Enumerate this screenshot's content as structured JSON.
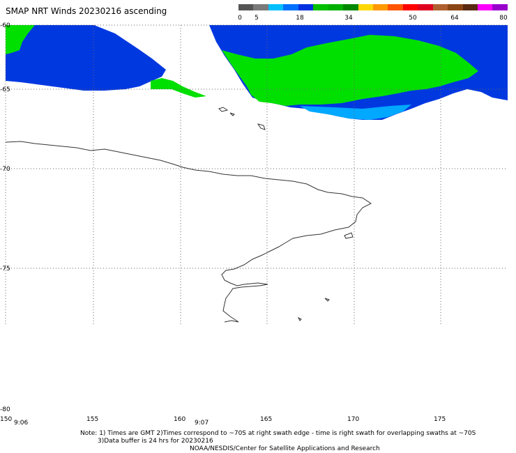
{
  "title": "SMAP NRT Winds 20230216 ascending",
  "legend": {
    "labels": [
      "0",
      "5",
      "18",
      "34",
      "50",
      "64",
      "80"
    ],
    "colors": [
      "#555555",
      "#7a7a7a",
      "#00bfff",
      "#0070ff",
      "#0030e0",
      "#00c000",
      "#00b000",
      "#008800",
      "#ffd700",
      "#ff9900",
      "#ff5500",
      "#ff0000",
      "#e00020",
      "#b06030",
      "#8b4513",
      "#5a2a10",
      "#ff00ff",
      "#9900cc"
    ]
  },
  "lat_labels": [
    "-60",
    "-65",
    "-70",
    "-75",
    "-80"
  ],
  "lon_labels": [
    "150",
    "155",
    "160",
    "165",
    "170",
    "175"
  ],
  "times": [
    "9:06",
    "9:07"
  ],
  "notes": {
    "line1": "Note: 1) Times are GMT 2)Times correspond to ~70S at right swath edge - time is right swath for overlapping swaths at ~70S",
    "line2": "3)Data buffer is 24 hrs for 20230216",
    "line3": "NOAA/NESDIS/Center for Satellite Applications and Research"
  },
  "colors": {
    "wind_blue": "#0038e0",
    "wind_light_blue": "#00a8ff",
    "wind_green": "#00e000",
    "coast": "#333333"
  }
}
